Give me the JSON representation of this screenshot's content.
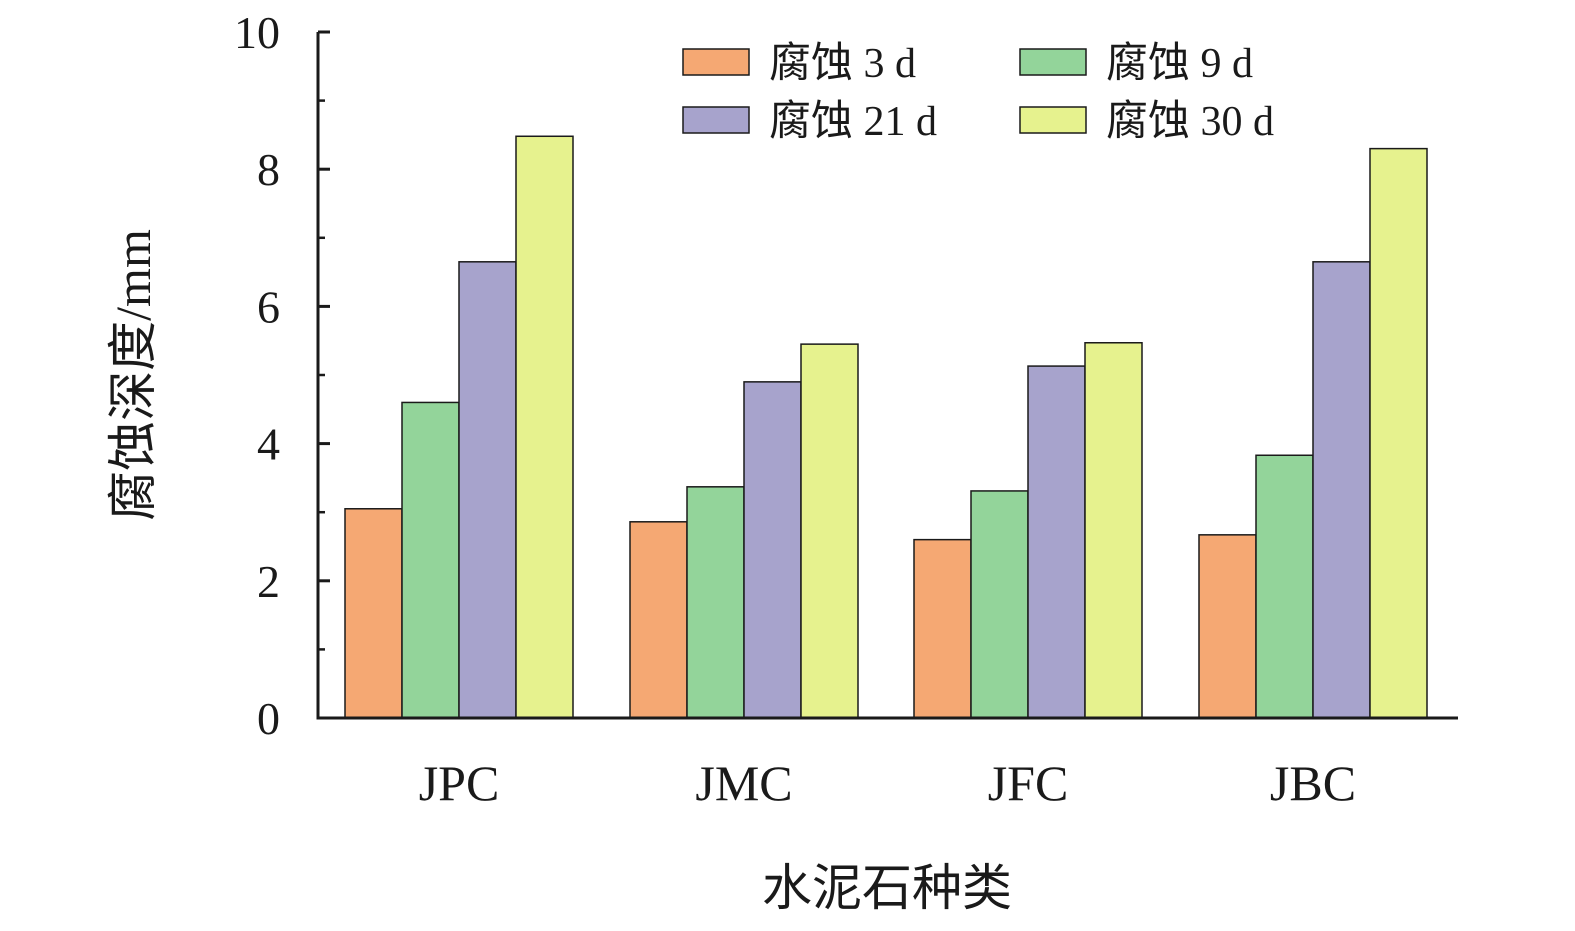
{
  "chart_data": {
    "type": "bar",
    "title": "",
    "xlabel": "水泥石种类",
    "ylabel": "腐蚀深度/mm",
    "ylim": [
      0,
      10
    ],
    "yticks": [
      "0",
      "2",
      "4",
      "6",
      "8",
      "10"
    ],
    "categories": [
      "JPC",
      "JMC",
      "JFC",
      "JBC"
    ],
    "legend_position": "top-right",
    "grid": false,
    "series": [
      {
        "name": "腐蚀 3 d",
        "color": "#f5a873",
        "values": [
          3.05,
          2.86,
          2.6,
          2.67
        ]
      },
      {
        "name": "腐蚀 9 d",
        "color": "#93d49a",
        "values": [
          4.6,
          3.37,
          3.31,
          3.83
        ]
      },
      {
        "name": "腐蚀 21 d",
        "color": "#a7a3cc",
        "values": [
          6.65,
          4.9,
          5.13,
          6.65
        ]
      },
      {
        "name": "腐蚀 30 d",
        "color": "#e6f28e",
        "values": [
          8.48,
          5.45,
          5.47,
          8.3
        ]
      }
    ]
  }
}
